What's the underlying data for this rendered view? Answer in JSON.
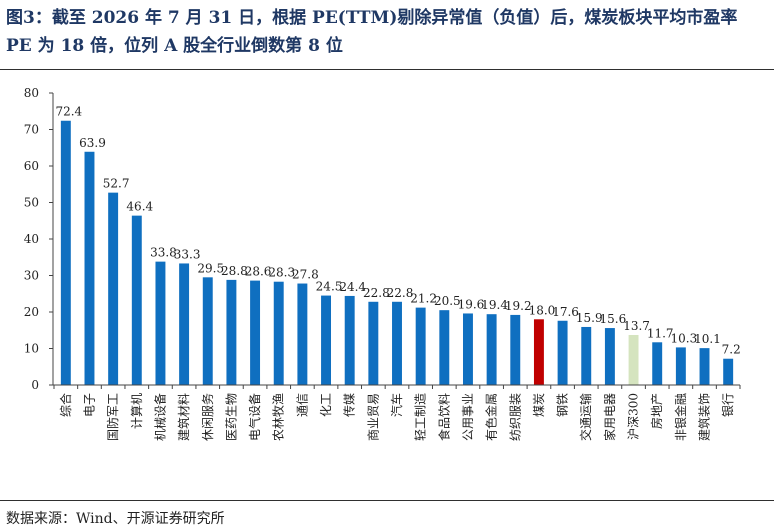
{
  "header": {
    "title": "图3：截至 2026 年 7 月 31 日，根据 PE(TTM)剔除异常值（负值）后，煤炭板块平均市盈率 PE 为 18 倍，位列 A 股全行业倒数第 8 位"
  },
  "footer": {
    "source": "数据来源：Wind、开源证券研究所"
  },
  "colors": {
    "default_bar": "#0f6fc0",
    "highlight_bar": "#c00000",
    "benchmark_bar": "#d5e4bf"
  },
  "chart_data": {
    "type": "bar",
    "categories": [
      "综合",
      "电子",
      "国防军工",
      "计算机",
      "机械设备",
      "建筑材料",
      "休闲服务",
      "医药生物",
      "电气设备",
      "农林牧渔",
      "通信",
      "化工",
      "传媒",
      "商业贸易",
      "汽车",
      "轻工制造",
      "食品饮料",
      "公用事业",
      "有色金属",
      "纺织服装",
      "煤炭",
      "钢铁",
      "交通运输",
      "家用电器",
      "沪深300",
      "房地产",
      "非银金融",
      "建筑装饰",
      "银行"
    ],
    "values": [
      72.4,
      63.9,
      52.7,
      46.4,
      33.8,
      33.3,
      29.5,
      28.8,
      28.6,
      28.3,
      27.8,
      24.5,
      24.4,
      22.8,
      22.8,
      21.2,
      20.5,
      19.6,
      19.4,
      19.2,
      18.0,
      17.6,
      15.9,
      15.6,
      13.7,
      11.7,
      10.3,
      10.1,
      7.2
    ],
    "value_labels": [
      "72.4",
      "63.9",
      "52.7",
      "46.4",
      "33.8",
      "33.3",
      "29.5",
      "28.8",
      "28.6",
      "28.3",
      "27.8",
      "24.5",
      "24.4",
      "22.8",
      "22.8",
      "21.2",
      "20.5",
      "19.6",
      "19.4",
      "19.2",
      "18.0",
      "17.6",
      "15.9",
      "15.6",
      "13.7",
      "11.7",
      "10.3",
      "10.1",
      "7.2"
    ],
    "highlight": "煤炭",
    "benchmark": "沪深300",
    "ylim": [
      0,
      80
    ],
    "yticks": [
      "0",
      "10",
      "20",
      "30",
      "40",
      "50",
      "60",
      "70",
      "80"
    ],
    "grid": false,
    "legend": "none"
  }
}
